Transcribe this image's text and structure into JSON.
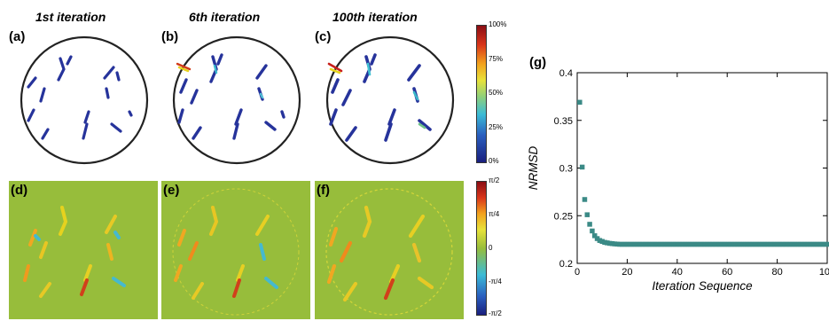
{
  "columns": {
    "titles": [
      "1st iteration",
      "6th iteration",
      "100th iteration"
    ]
  },
  "panels": {
    "a": "(a)",
    "b": "(b)",
    "c": "(c)",
    "d": "(d)",
    "e": "(e)",
    "f": "(f)",
    "g": "(g)"
  },
  "colorbar_amplitude": {
    "ticks": [
      "100%",
      "75%",
      "50%",
      "25%",
      "0%"
    ]
  },
  "colorbar_phase": {
    "ticks": [
      "π/2",
      "π/4",
      "0",
      "-π/4",
      "-π/2"
    ]
  },
  "colors": {
    "phase_background": "#97bd3b",
    "amplitude_blob": "#26339b",
    "series_marker": "#3b8a86"
  },
  "chart_data": {
    "type": "scatter",
    "xlabel": "Iteration Sequence",
    "ylabel": "NRMSD",
    "xlim": [
      0,
      100
    ],
    "ylim": [
      0.2,
      0.4
    ],
    "x_ticks": [
      "0",
      "20",
      "40",
      "60",
      "80",
      "100"
    ],
    "y_ticks": [
      "0.2",
      "0.25",
      "0.3",
      "0.35",
      "0.4"
    ],
    "grid": false,
    "x": [
      1,
      2,
      3,
      4,
      5,
      6,
      7,
      8,
      9,
      10,
      11,
      12,
      13,
      14,
      15,
      16,
      17,
      18,
      19,
      20,
      21,
      22,
      23,
      24,
      25,
      26,
      27,
      28,
      29,
      30,
      31,
      32,
      33,
      34,
      35,
      36,
      37,
      38,
      39,
      40,
      41,
      42,
      43,
      44,
      45,
      46,
      47,
      48,
      49,
      50,
      51,
      52,
      53,
      54,
      55,
      56,
      57,
      58,
      59,
      60,
      61,
      62,
      63,
      64,
      65,
      66,
      67,
      68,
      69,
      70,
      71,
      72,
      73,
      74,
      75,
      76,
      77,
      78,
      79,
      80,
      81,
      82,
      83,
      84,
      85,
      86,
      87,
      88,
      89,
      90,
      91,
      92,
      93,
      94,
      95,
      96,
      97,
      98,
      99,
      100
    ],
    "y": [
      0.369,
      0.301,
      0.267,
      0.251,
      0.241,
      0.234,
      0.229,
      0.226,
      0.224,
      0.223,
      0.222,
      0.2215,
      0.221,
      0.2207,
      0.2204,
      0.2202,
      0.22,
      0.22,
      0.22,
      0.22,
      0.22,
      0.22,
      0.22,
      0.22,
      0.22,
      0.22,
      0.22,
      0.22,
      0.22,
      0.22,
      0.22,
      0.22,
      0.22,
      0.22,
      0.22,
      0.22,
      0.22,
      0.22,
      0.22,
      0.22,
      0.22,
      0.22,
      0.22,
      0.22,
      0.22,
      0.22,
      0.22,
      0.22,
      0.22,
      0.22,
      0.22,
      0.22,
      0.22,
      0.22,
      0.22,
      0.22,
      0.22,
      0.22,
      0.22,
      0.22,
      0.22,
      0.22,
      0.22,
      0.22,
      0.22,
      0.22,
      0.22,
      0.22,
      0.22,
      0.22,
      0.22,
      0.22,
      0.22,
      0.22,
      0.22,
      0.22,
      0.22,
      0.22,
      0.22,
      0.22,
      0.22,
      0.22,
      0.22,
      0.22,
      0.22,
      0.22,
      0.22,
      0.22,
      0.22,
      0.22,
      0.22,
      0.22,
      0.22,
      0.22,
      0.22,
      0.22,
      0.22,
      0.22,
      0.22,
      0.22
    ]
  }
}
